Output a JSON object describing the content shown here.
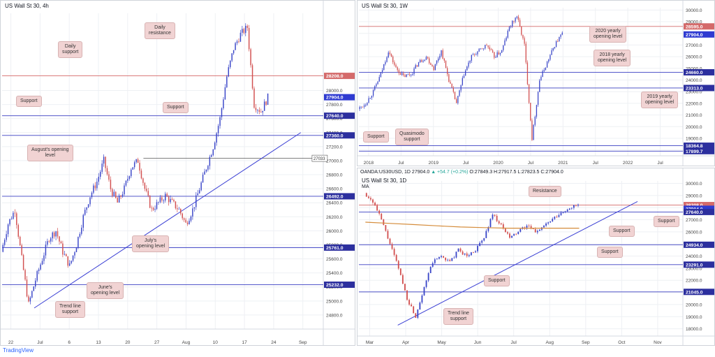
{
  "brand": "TradingView",
  "colors": {
    "up": "#3a46c8",
    "down": "#d25050",
    "support": "#3a3fc2",
    "resistance": "#d46a6a",
    "ma": "#d58c3b",
    "trend": "#3a3fd4",
    "grid": "#eef0f4",
    "annotation": "#f1d3d3"
  },
  "chart_data": [
    {
      "id": "h4",
      "title": "US Wall St 30, 4h",
      "type": "candlestick",
      "ylim": [
        24600,
        29100
      ],
      "x_ticks": [
        "22",
        "Jul",
        "6",
        "13",
        "20",
        "27",
        "Aug",
        "10",
        "17",
        "24",
        "Sep"
      ],
      "y_ticks": [
        24800,
        25000,
        25200,
        25400,
        25600,
        25800,
        26000,
        26200,
        26400,
        26600,
        26800,
        27000,
        27200,
        27400,
        27600,
        27800,
        28000
      ],
      "path": [
        25700,
        26100,
        26300,
        25600,
        24950,
        25300,
        25600,
        25900,
        26000,
        25700,
        25500,
        25800,
        26200,
        26500,
        26700,
        27000,
        26600,
        26400,
        26600,
        26900,
        27000,
        26600,
        26300,
        26400,
        26500,
        26400,
        26300,
        26100,
        26300,
        26600,
        26900,
        27200,
        27600,
        28200,
        28600,
        28800,
        28900,
        27800,
        27700,
        27900
      ],
      "levels": [
        {
          "label": "28208.0",
          "value": 28208,
          "kind": "resistance"
        },
        {
          "label": "27904.0",
          "value": 27904,
          "kind": "price"
        },
        {
          "label": "27640.0",
          "value": 27640,
          "kind": "support"
        },
        {
          "label": "27360.0",
          "value": 27360,
          "kind": "support"
        },
        {
          "label": "26492.0",
          "value": 26492,
          "kind": "support"
        },
        {
          "label": "25761.0",
          "value": 25761,
          "kind": "support"
        },
        {
          "label": "25232.0",
          "value": 25232,
          "kind": "support"
        }
      ],
      "minor_label": "27033",
      "minor_value": 27033,
      "trendline": [
        {
          "x": 0.1,
          "v": 24900
        },
        {
          "x": 0.93,
          "v": 27400
        }
      ],
      "annotations": [
        "Daily\nresistance",
        "Daily\nsupport",
        "Support",
        "Support",
        "August's opening\nlevel",
        "July's\nopening level",
        "June's\nopening level",
        "Trend line\nsupport"
      ]
    },
    {
      "id": "w1",
      "title": "US Wall St 30, 1W",
      "type": "candlestick",
      "ylim": [
        17500,
        30200
      ],
      "x_ticks": [
        "2018",
        "Jul",
        "2019",
        "Jul",
        "2020",
        "Jul",
        "2021",
        "Jul",
        "2022",
        "Jul"
      ],
      "y_ticks": [
        18000,
        19000,
        20000,
        21000,
        22000,
        23000,
        24000,
        25000,
        26000,
        27000,
        28000,
        29000,
        30000
      ],
      "path": [
        21500,
        22000,
        23000,
        24500,
        26500,
        25000,
        24300,
        24500,
        25500,
        26000,
        25000,
        26500,
        24000,
        22000,
        24500,
        26000,
        26500,
        27000,
        26000,
        26500,
        28500,
        29500,
        27000,
        19000,
        24000,
        25500,
        27000,
        28000
      ],
      "levels": [
        {
          "label": "28595.0",
          "value": 28595,
          "kind": "resistance"
        },
        {
          "label": "27904.0",
          "value": 27904,
          "kind": "price"
        },
        {
          "label": "24660.0",
          "value": 24660,
          "kind": "support"
        },
        {
          "label": "23313.0",
          "value": 23313,
          "kind": "support"
        },
        {
          "label": "18364.8",
          "value": 18364.8,
          "kind": "support"
        },
        {
          "label": "17899.7",
          "value": 17899.7,
          "kind": "support"
        }
      ],
      "annotations": [
        "2020 yearly\nopening level",
        "2018 yearly\nopening level",
        "2019 yearly\nopening level",
        "Support",
        "Quasimodo\nsupport"
      ]
    },
    {
      "id": "d1",
      "title": "US Wall St 30, 1D",
      "subtitle": "MA",
      "type": "candlestick",
      "ohlc": {
        "symbol": "OANDA:US30USD, 1D",
        "last": "27904.0",
        "change": "▲ +54.7 (+0.2%)",
        "o": "O:27849.3",
        "h": "H:27917.5",
        "l": "L:27823.5",
        "c": "C:27904.0"
      },
      "ylim": [
        17400,
        30200
      ],
      "x_ticks": [
        "Mar",
        "Apr",
        "May",
        "Jun",
        "Jul",
        "Aug",
        "Sep",
        "Oct",
        "Nov"
      ],
      "y_ticks": [
        18000,
        19000,
        20000,
        21000,
        22000,
        23000,
        24000,
        25000,
        26000,
        27000,
        28000,
        29000,
        30000
      ],
      "path": [
        29200,
        28500,
        27000,
        25000,
        23000,
        20500,
        19000,
        21500,
        23500,
        24000,
        23500,
        24500,
        24000,
        24500,
        25500,
        27500,
        26500,
        25500,
        26000,
        26500,
        26000,
        26500,
        27000,
        27500,
        28000,
        28200
      ],
      "ma": [
        26800,
        26700,
        26600,
        26500,
        26400,
        26350,
        26300,
        26300,
        26300,
        26300
      ],
      "levels": [
        {
          "label": "28208.0",
          "value": 28208,
          "kind": "resistance"
        },
        {
          "label": "27904.0",
          "value": 27904,
          "kind": "price"
        },
        {
          "label": "27640.0",
          "value": 27640,
          "kind": "support"
        },
        {
          "label": "24934.0",
          "value": 24934,
          "kind": "support"
        },
        {
          "label": "23291.0",
          "value": 23291,
          "kind": "support"
        },
        {
          "label": "21045.0",
          "value": 21045,
          "kind": "support"
        }
      ],
      "trendline": [
        {
          "x": 0.12,
          "v": 18300
        },
        {
          "x": 0.86,
          "v": 28500
        }
      ],
      "annotations": [
        "Resistance",
        "Support",
        "Support",
        "Support",
        "Support",
        "Trend line\nsupport"
      ]
    }
  ]
}
